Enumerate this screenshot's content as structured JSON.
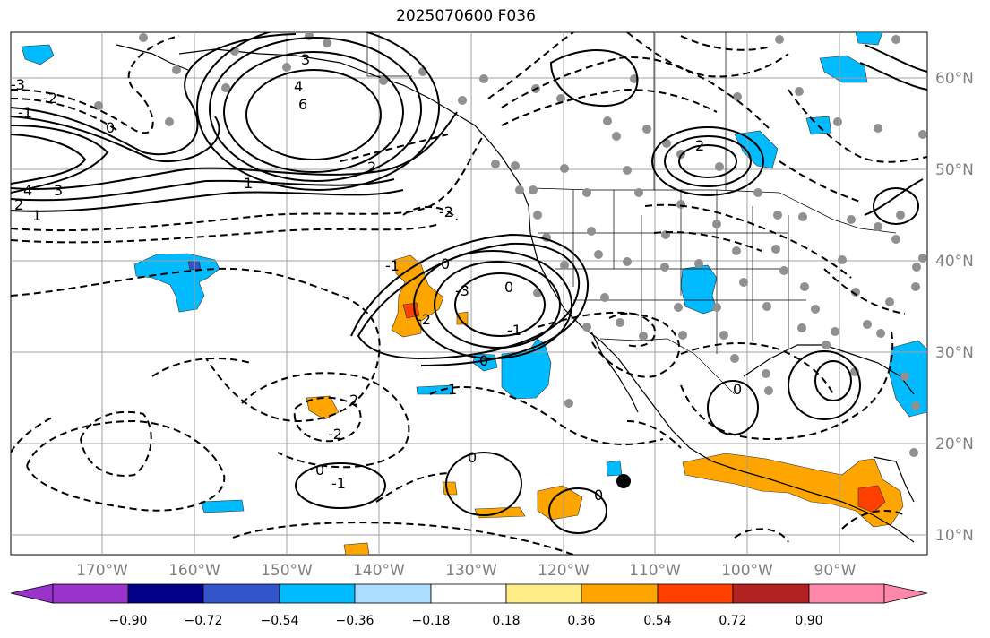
{
  "title": "2025070600 F036",
  "lon_labels": [
    "170°W",
    "160°W",
    "150°W",
    "140°W",
    "130°W",
    "120°W",
    "110°W",
    "100°W",
    "90°W"
  ],
  "lat_labels": [
    "60°N",
    "50°N",
    "40°N",
    "30°N",
    "20°N",
    "10°N"
  ],
  "colorbar": {
    "tick_labels": [
      "−0.90",
      "−0.72",
      "−0.54",
      "−0.36",
      "−0.18",
      "0.18",
      "0.36",
      "0.54",
      "0.72",
      "0.90"
    ],
    "colors": [
      "#9933cc",
      "#000088",
      "#3355cc",
      "#00bbff",
      "#aaddff",
      "#ffffff",
      "#ffee88",
      "#ffa500",
      "#ff4000",
      "#b22222",
      "#ff88aa"
    ]
  },
  "contour_labels": [
    "6",
    "4",
    "3",
    "2",
    "1",
    "0",
    "-1",
    "-2",
    "-3",
    "4",
    "3",
    "2",
    "1",
    "0",
    "-1",
    "-2",
    "-3",
    "0",
    "-1",
    "-2",
    "1",
    "2",
    "0",
    "-1",
    "-2",
    "0",
    "0",
    "0",
    "0",
    "2"
  ],
  "colors": {
    "grid": "#a0a0a0",
    "contour": "#000000",
    "state_point": "#909090",
    "tc_marker": "#000000"
  }
}
